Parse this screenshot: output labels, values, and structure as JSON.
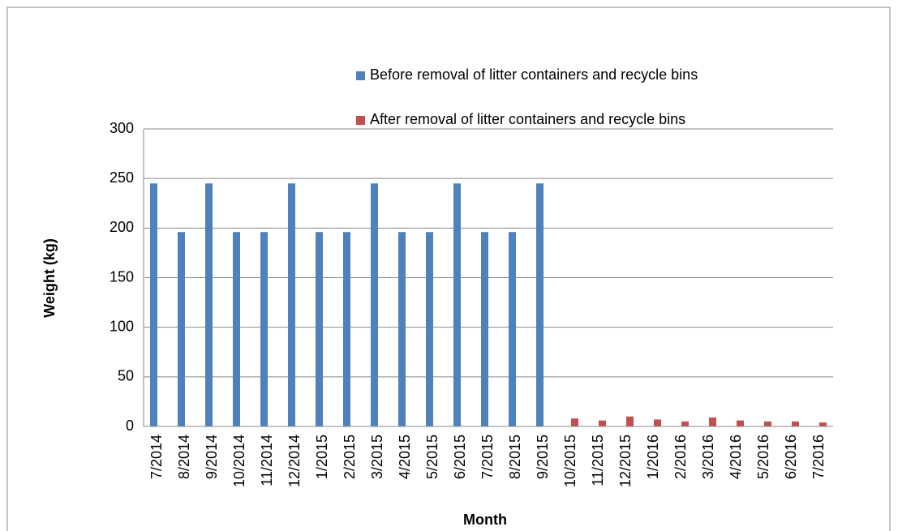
{
  "chart_data": {
    "type": "bar",
    "categories": [
      "7/2014",
      "8/2014",
      "9/2014",
      "10/2014",
      "11/2014",
      "12/2014",
      "1/2015",
      "2/2015",
      "3/2015",
      "4/2015",
      "5/2015",
      "6/2015",
      "7/2015",
      "8/2015",
      "9/2015",
      "10/2015",
      "11/2015",
      "12/2015",
      "1/2016",
      "2/2016",
      "3/2016",
      "4/2016",
      "5/2016",
      "6/2016",
      "7/2016"
    ],
    "series": [
      {
        "name": "Before removal of litter containers and recycle bins",
        "color": "#4f81bd",
        "values": [
          245,
          196,
          245,
          196,
          196,
          245,
          196,
          196,
          245,
          196,
          196,
          245,
          196,
          196,
          245,
          null,
          null,
          null,
          null,
          null,
          null,
          null,
          null,
          null,
          null
        ]
      },
      {
        "name": "After removal of litter containers and recycle bins",
        "color": "#c0504d",
        "values": [
          null,
          null,
          null,
          null,
          null,
          null,
          null,
          null,
          null,
          null,
          null,
          null,
          null,
          null,
          null,
          8,
          6,
          10,
          7,
          5,
          9,
          6,
          5,
          5,
          4
        ]
      }
    ],
    "x_label": "Month",
    "y_label": "Weight (kg)",
    "ylim": [
      0,
      300
    ],
    "yticks": [
      0,
      50,
      100,
      150,
      200,
      250,
      300
    ],
    "grid": true
  }
}
